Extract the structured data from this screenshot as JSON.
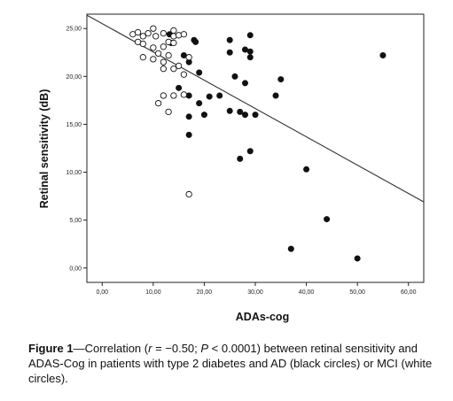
{
  "chart_data": {
    "type": "scatter",
    "xlabel": "ADAs-cog",
    "ylabel": "Retinal sensitivity (dB)",
    "xlim": [
      -3,
      63
    ],
    "ylim": [
      -1.5,
      26.5
    ],
    "x_ticks": [
      0,
      10,
      20,
      30,
      40,
      50,
      60
    ],
    "x_tick_labels": [
      "0,00",
      "10,00",
      "20,00",
      "30,00",
      "40,00",
      "50,00",
      "60,00"
    ],
    "y_ticks": [
      0,
      5,
      10,
      15,
      20,
      25
    ],
    "y_tick_labels": [
      "0,00",
      "5,00",
      "10,00",
      "15,00",
      "20,00",
      "25,00"
    ],
    "grid": false,
    "legend": "none",
    "fit_line": {
      "x": [
        -3,
        63
      ],
      "y": [
        26.4,
        6.9
      ]
    },
    "series": [
      {
        "marker": "filled",
        "color": "#111111",
        "points": [
          [
            13.5,
            23.5
          ],
          [
            13.2,
            24.4
          ],
          [
            18.0,
            23.8
          ],
          [
            18.3,
            23.6
          ],
          [
            16.0,
            22.2
          ],
          [
            17.0,
            21.5
          ],
          [
            19.0,
            20.4
          ],
          [
            15.0,
            18.8
          ],
          [
            17.0,
            18.0
          ],
          [
            19.0,
            17.2
          ],
          [
            21.0,
            17.9
          ],
          [
            23.0,
            18.0
          ],
          [
            17.0,
            15.8
          ],
          [
            20.0,
            16.0
          ],
          [
            17.0,
            13.9
          ],
          [
            25.0,
            23.8
          ],
          [
            25.0,
            22.5
          ],
          [
            26.0,
            20.0
          ],
          [
            28.0,
            19.3
          ],
          [
            28.0,
            22.8
          ],
          [
            29.0,
            22.0
          ],
          [
            29.0,
            22.6
          ],
          [
            29.0,
            24.3
          ],
          [
            25.0,
            16.4
          ],
          [
            27.0,
            16.3
          ],
          [
            28.0,
            16.0
          ],
          [
            30.0,
            16.0
          ],
          [
            27.0,
            11.4
          ],
          [
            29.0,
            12.2
          ],
          [
            34.0,
            18.0
          ],
          [
            35.0,
            19.7
          ],
          [
            40.0,
            10.3
          ],
          [
            44.0,
            5.1
          ],
          [
            37.0,
            2.0
          ],
          [
            50.0,
            1.0
          ],
          [
            55.0,
            22.2
          ]
        ]
      },
      {
        "marker": "hollow",
        "color": "#111111",
        "points": [
          [
            6.0,
            24.4
          ],
          [
            7.0,
            24.6
          ],
          [
            8.0,
            24.2
          ],
          [
            9.0,
            24.5
          ],
          [
            10.0,
            25.0
          ],
          [
            10.5,
            24.2
          ],
          [
            12.0,
            24.5
          ],
          [
            14.0,
            24.8
          ],
          [
            14.0,
            24.2
          ],
          [
            15.0,
            24.3
          ],
          [
            16.0,
            24.4
          ],
          [
            7.0,
            23.6
          ],
          [
            8.0,
            23.4
          ],
          [
            10.0,
            23.0
          ],
          [
            12.0,
            23.1
          ],
          [
            13.0,
            23.6
          ],
          [
            14.0,
            23.5
          ],
          [
            11.0,
            22.4
          ],
          [
            13.0,
            22.2
          ],
          [
            8.0,
            22.0
          ],
          [
            10.0,
            21.8
          ],
          [
            12.0,
            21.5
          ],
          [
            15.0,
            21.1
          ],
          [
            12.0,
            20.8
          ],
          [
            14.0,
            20.8
          ],
          [
            16.0,
            20.2
          ],
          [
            12.0,
            18.0
          ],
          [
            14.0,
            18.0
          ],
          [
            16.0,
            18.1
          ],
          [
            11.0,
            17.2
          ],
          [
            13.0,
            16.3
          ],
          [
            17.0,
            22.0
          ],
          [
            17.0,
            7.7
          ]
        ]
      }
    ]
  },
  "caption": {
    "label": "Figure 1",
    "dash": "—",
    "parts": [
      "Correlation (",
      "r",
      " = −0.50; ",
      "P",
      " < 0.0001) between retinal sensitivity and ADAS-Cog in patients with type 2 diabetes and AD (black circles) or MCI (white circles)."
    ]
  }
}
